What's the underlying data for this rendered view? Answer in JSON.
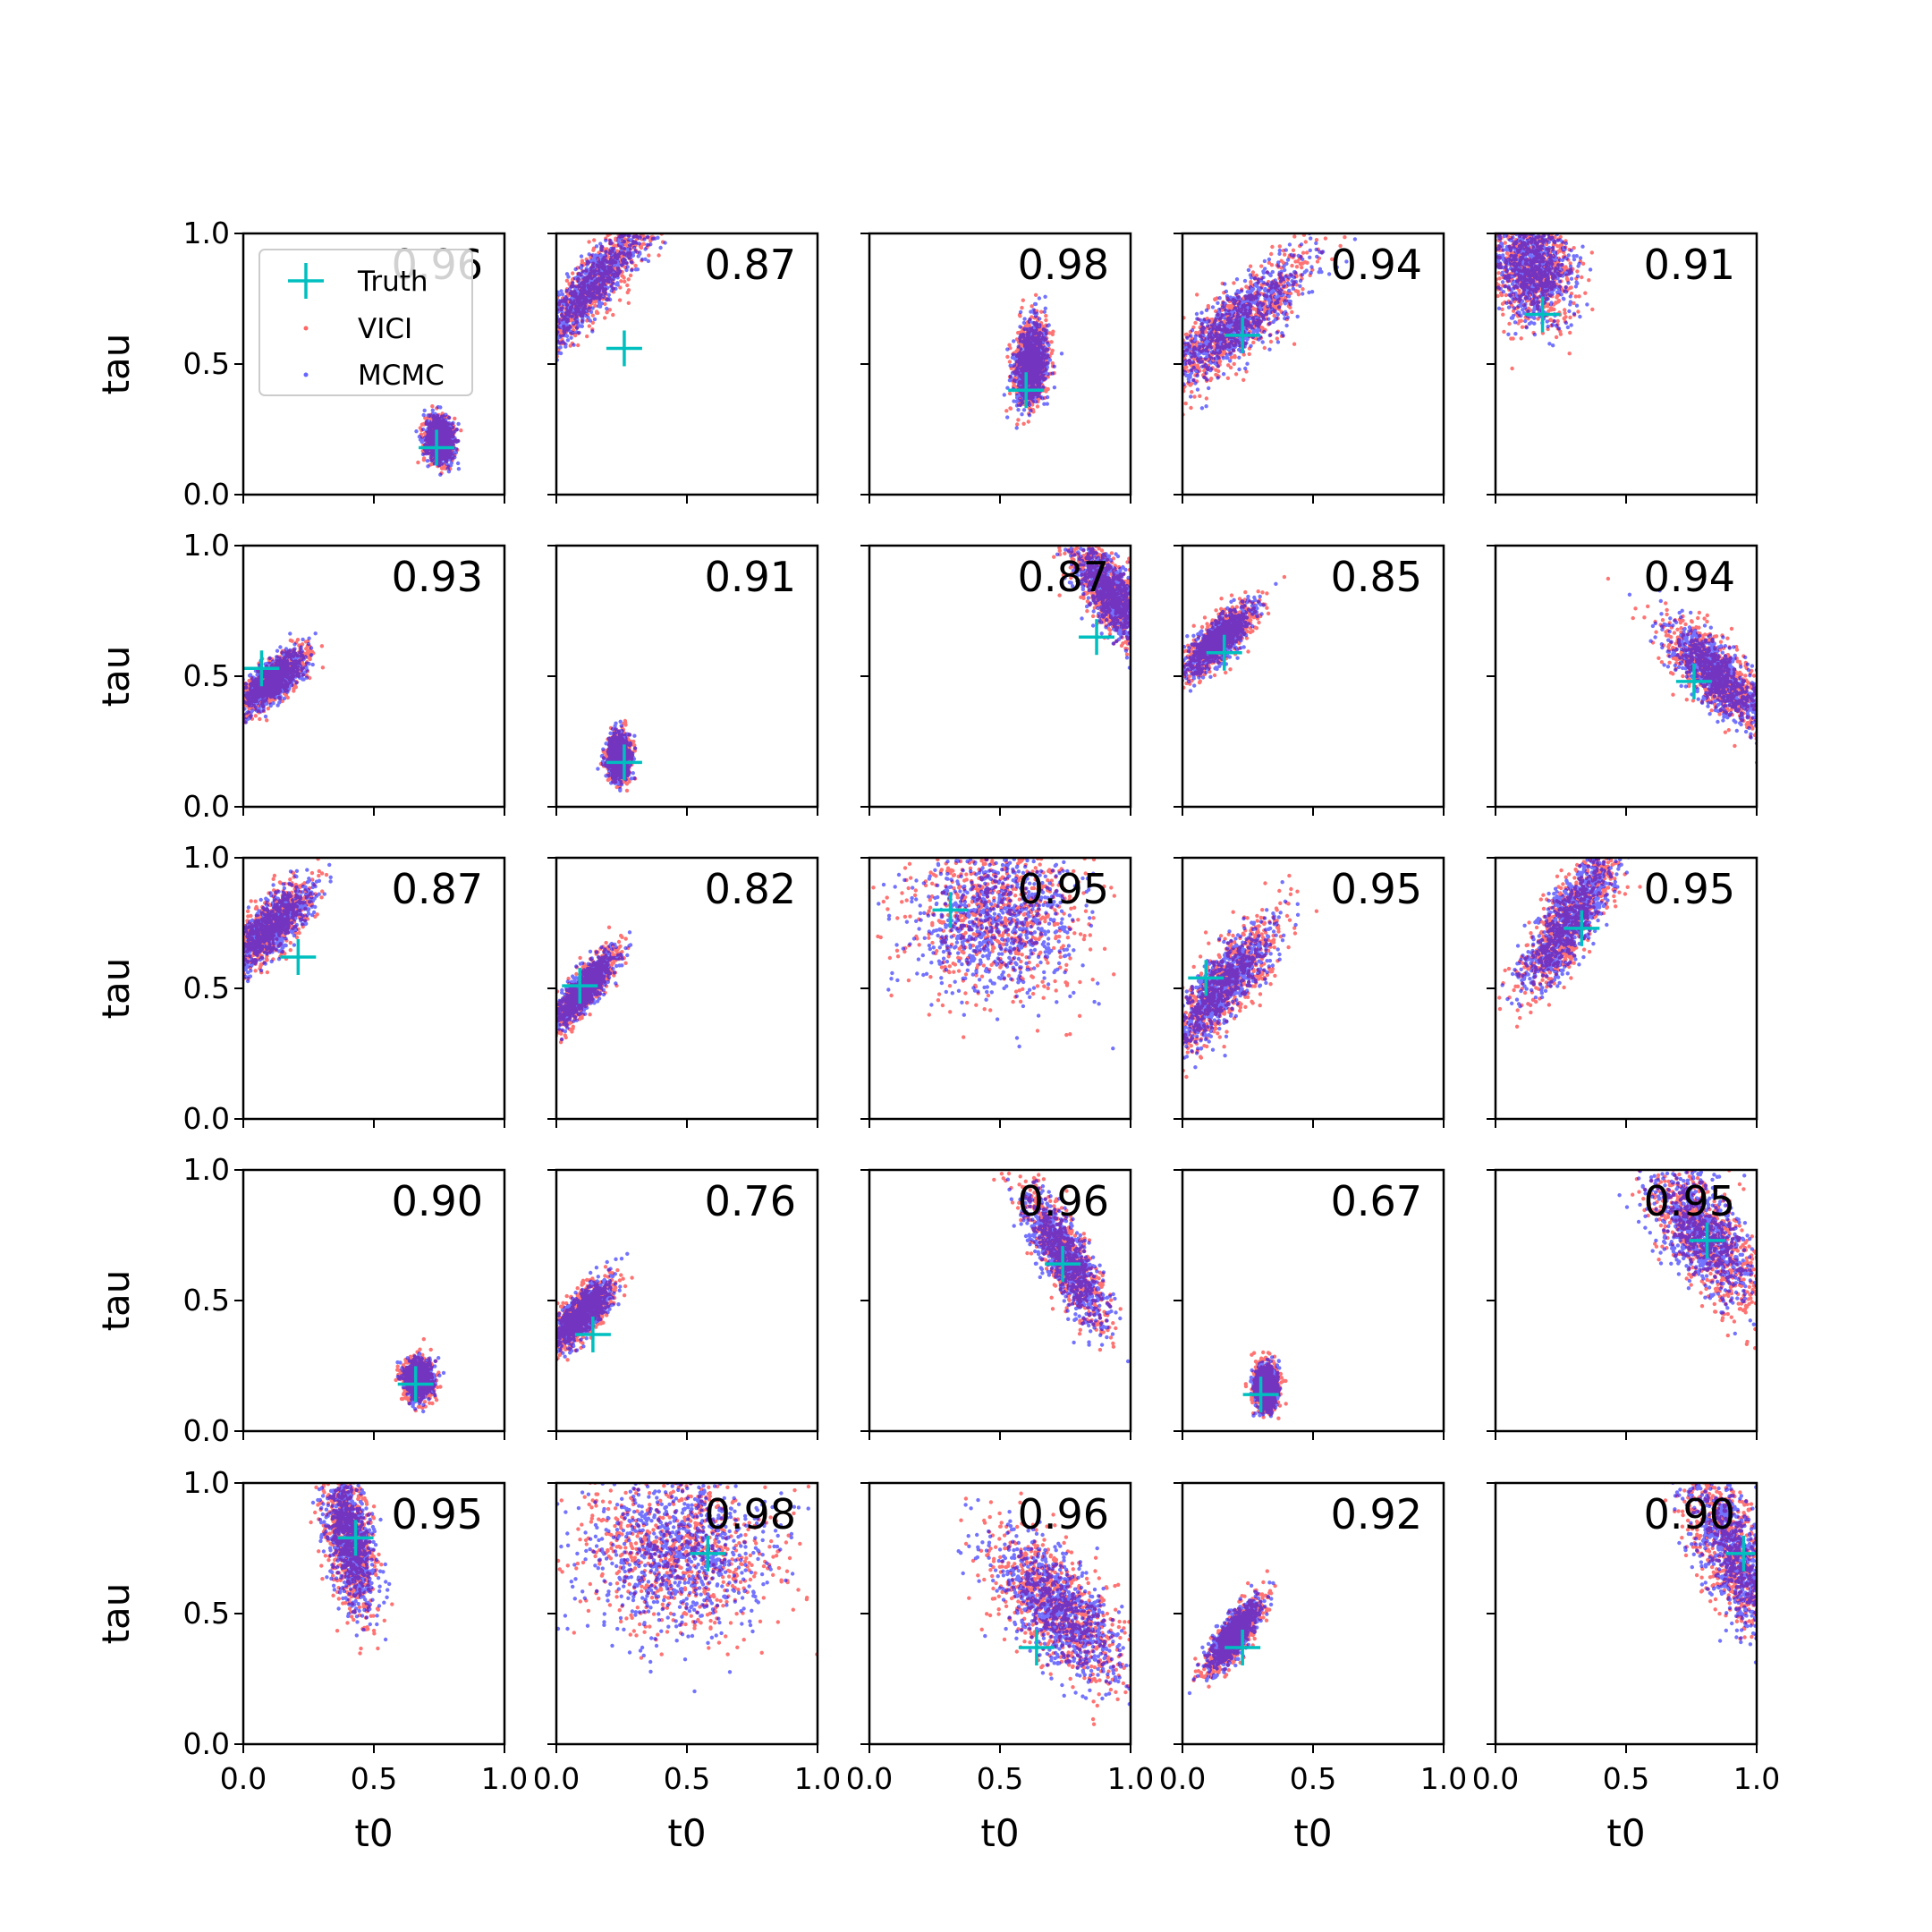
{
  "chart_data": {
    "type": "scatter",
    "layout": {
      "rows": 5,
      "cols": 5
    },
    "xlabel": "t0",
    "ylabel": "tau",
    "xlim": [
      0,
      1
    ],
    "ylim": [
      0,
      1
    ],
    "xticks": [
      "0.0",
      "0.5",
      "1.0"
    ],
    "yticks": [
      "0.0",
      "0.5",
      "1.0"
    ],
    "legend": {
      "placement": "top-left of first panel",
      "entries": [
        {
          "label": "Truth",
          "marker": "+",
          "color": "#00bfbf"
        },
        {
          "label": "VICI",
          "marker": "point",
          "color": "#ff0000"
        },
        {
          "label": "MCMC",
          "marker": "point",
          "color": "#0000ff"
        }
      ]
    },
    "colors": {
      "vici": "#ff0000",
      "mcmc": "#0000ff",
      "truth": "#00bfbf"
    },
    "panels": [
      {
        "score": "0.96",
        "truth": [
          0.74,
          0.18
        ],
        "cloud": {
          "cx": 0.75,
          "cy": 0.21,
          "rx": 0.05,
          "ry": 0.08,
          "angle": 5
        }
      },
      {
        "score": "0.87",
        "truth": [
          0.26,
          0.56
        ],
        "cloud": {
          "cx": 0.12,
          "cy": 0.78,
          "rx": 0.33,
          "ry": 0.08,
          "angle": 50
        }
      },
      {
        "score": "0.98",
        "truth": [
          0.6,
          0.4
        ],
        "cloud": {
          "cx": 0.62,
          "cy": 0.5,
          "rx": 0.06,
          "ry": 0.15,
          "angle": -5
        }
      },
      {
        "score": "0.94",
        "truth": [
          0.23,
          0.61
        ],
        "cloud": {
          "cx": 0.2,
          "cy": 0.65,
          "rx": 0.36,
          "ry": 0.1,
          "angle": 42
        }
      },
      {
        "score": "0.91",
        "truth": [
          0.18,
          0.69
        ],
        "cloud": {
          "cx": 0.14,
          "cy": 0.87,
          "rx": 0.14,
          "ry": 0.2,
          "angle": 15
        }
      },
      {
        "score": "0.93",
        "truth": [
          0.07,
          0.53
        ],
        "cloud": {
          "cx": 0.11,
          "cy": 0.48,
          "rx": 0.15,
          "ry": 0.06,
          "angle": 42
        }
      },
      {
        "score": "0.91",
        "truth": [
          0.26,
          0.17
        ],
        "cloud": {
          "cx": 0.24,
          "cy": 0.19,
          "rx": 0.04,
          "ry": 0.08,
          "angle": 0
        }
      },
      {
        "score": "0.87",
        "truth": [
          0.87,
          0.65
        ],
        "cloud": {
          "cx": 0.92,
          "cy": 0.82,
          "rx": 0.22,
          "ry": 0.08,
          "angle": -58
        }
      },
      {
        "score": "0.85",
        "truth": [
          0.16,
          0.59
        ],
        "cloud": {
          "cx": 0.14,
          "cy": 0.64,
          "rx": 0.17,
          "ry": 0.06,
          "angle": 45
        }
      },
      {
        "score": "0.94",
        "truth": [
          0.76,
          0.48
        ],
        "cloud": {
          "cx": 0.85,
          "cy": 0.5,
          "rx": 0.25,
          "ry": 0.09,
          "angle": -45
        }
      },
      {
        "score": "0.87",
        "truth": [
          0.21,
          0.62
        ],
        "cloud": {
          "cx": 0.1,
          "cy": 0.73,
          "rx": 0.22,
          "ry": 0.08,
          "angle": 45
        }
      },
      {
        "score": "0.82",
        "truth": [
          0.09,
          0.51
        ],
        "cloud": {
          "cx": 0.11,
          "cy": 0.5,
          "rx": 0.16,
          "ry": 0.05,
          "angle": 52
        }
      },
      {
        "score": "0.95",
        "truth": [
          0.31,
          0.8
        ],
        "cloud": {
          "cx": 0.48,
          "cy": 0.78,
          "rx": 0.32,
          "ry": 0.3,
          "angle": 0
        }
      },
      {
        "score": "0.95",
        "truth": [
          0.09,
          0.54
        ],
        "cloud": {
          "cx": 0.15,
          "cy": 0.5,
          "rx": 0.3,
          "ry": 0.09,
          "angle": 52
        }
      },
      {
        "score": "0.95",
        "truth": [
          0.33,
          0.73
        ],
        "cloud": {
          "cx": 0.28,
          "cy": 0.76,
          "rx": 0.3,
          "ry": 0.09,
          "angle": 58
        }
      },
      {
        "score": "0.90",
        "truth": [
          0.66,
          0.18
        ],
        "cloud": {
          "cx": 0.67,
          "cy": 0.2,
          "rx": 0.05,
          "ry": 0.07,
          "angle": 0
        }
      },
      {
        "score": "0.76",
        "truth": [
          0.14,
          0.37
        ],
        "cloud": {
          "cx": 0.1,
          "cy": 0.45,
          "rx": 0.15,
          "ry": 0.06,
          "angle": 50
        }
      },
      {
        "score": "0.96",
        "truth": [
          0.74,
          0.64
        ],
        "cloud": {
          "cx": 0.75,
          "cy": 0.66,
          "rx": 0.28,
          "ry": 0.08,
          "angle": -60
        }
      },
      {
        "score": "0.67",
        "truth": [
          0.3,
          0.14
        ],
        "cloud": {
          "cx": 0.32,
          "cy": 0.17,
          "rx": 0.04,
          "ry": 0.08,
          "angle": 0
        }
      },
      {
        "score": "0.95",
        "truth": [
          0.81,
          0.73
        ],
        "cloud": {
          "cx": 0.8,
          "cy": 0.75,
          "rx": 0.3,
          "ry": 0.13,
          "angle": -55
        }
      },
      {
        "score": "0.95",
        "truth": [
          0.43,
          0.79
        ],
        "cloud": {
          "cx": 0.41,
          "cy": 0.78,
          "rx": 0.26,
          "ry": 0.08,
          "angle": -80
        }
      },
      {
        "score": "0.98",
        "truth": [
          0.58,
          0.73
        ],
        "cloud": {
          "cx": 0.47,
          "cy": 0.74,
          "rx": 0.35,
          "ry": 0.3,
          "angle": 0
        }
      },
      {
        "score": "0.96",
        "truth": [
          0.64,
          0.37
        ],
        "cloud": {
          "cx": 0.72,
          "cy": 0.52,
          "rx": 0.33,
          "ry": 0.15,
          "angle": -50
        }
      },
      {
        "score": "0.92",
        "truth": [
          0.23,
          0.37
        ],
        "cloud": {
          "cx": 0.2,
          "cy": 0.42,
          "rx": 0.15,
          "ry": 0.05,
          "angle": 55
        }
      },
      {
        "score": "0.90",
        "truth": [
          0.95,
          0.73
        ],
        "cloud": {
          "cx": 0.92,
          "cy": 0.72,
          "rx": 0.36,
          "ry": 0.13,
          "angle": -65
        }
      }
    ]
  }
}
